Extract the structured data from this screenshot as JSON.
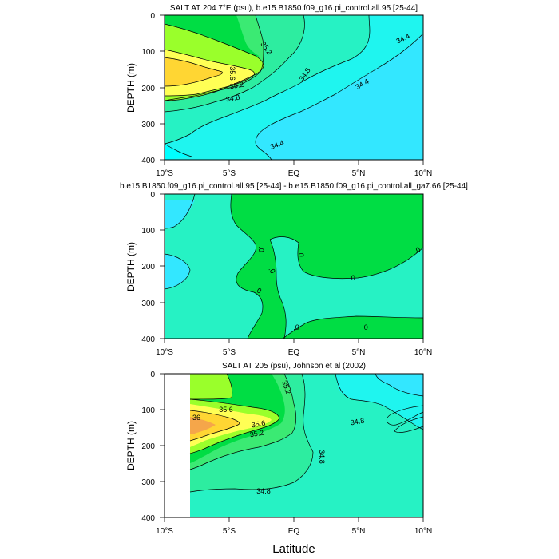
{
  "figure": {
    "x_axis_label": "Latitude"
  },
  "colors": {
    "c34_2": "#00ffff",
    "c34_4": "#33e7ff",
    "c34_6": "#1ff5ef",
    "c34_8": "#26f2c4",
    "c35_0": "#2deda0",
    "c35_2": "#3bea73",
    "c35_4": "#00dd44",
    "c35_6": "#9aff2b",
    "c35_8": "#ffff55",
    "c36_0": "#ffd633",
    "c36_2": "#f5a64a"
  },
  "chart_data": [
    {
      "type": "contour",
      "title": "SALT AT 204.7°E (psu), b.e15.B1850.f09_g16.pi_control.all.95 [25-44]",
      "ylabel": "DEPTH (m)",
      "xlabel": "",
      "xlim": [
        -10,
        10
      ],
      "ylim": [
        400,
        0
      ],
      "x_ticks": [
        "10°S",
        "5°S",
        "EQ",
        "5°N",
        "10°N"
      ],
      "y_ticks": [
        "0",
        "100",
        "200",
        "300",
        "400"
      ],
      "contour_labels": [
        "35.2",
        "34.8",
        "34.4",
        "35.6",
        "35.2",
        "34.8",
        "34.4",
        "34.4"
      ],
      "levels": [
        34.4,
        34.8,
        35.2,
        35.6
      ]
    },
    {
      "type": "contour",
      "title": "b.e15.B1850.f09_g16.pi_control.all.95 [25-44] - b.e15.B1850.f09_g16.pi_control.all_ga7.66 [25-44]",
      "ylabel": "DEPTH (m)",
      "xlabel": "",
      "xlim": [
        -10,
        10
      ],
      "ylim": [
        400,
        0
      ],
      "x_ticks": [
        "10°S",
        "5°S",
        "EQ",
        "5°N",
        "10°N"
      ],
      "y_ticks": [
        "0",
        "100",
        "200",
        "300",
        "400"
      ],
      "contour_labels": [
        ".0",
        ".0",
        ".0",
        ".0",
        ".0",
        ".0",
        ".0",
        ".0"
      ],
      "levels": [
        0
      ]
    },
    {
      "type": "contour",
      "title": "SALT AT 205 (psu), Johnson et al (2002)",
      "ylabel": "DEPTH (m)",
      "xlabel": "Latitude",
      "xlim": [
        -10,
        10
      ],
      "ylim": [
        400,
        0
      ],
      "x_ticks": [
        "10°S",
        "5°S",
        "EQ",
        "5°N",
        "10°N"
      ],
      "y_ticks": [
        "0",
        "100",
        "200",
        "300",
        "400"
      ],
      "contour_labels": [
        "35.2",
        "35.6",
        "36",
        "35.6",
        "35.2",
        "34.8",
        "34.8",
        "34.8"
      ],
      "levels": [
        34.8,
        35.2,
        35.6,
        36.0
      ]
    }
  ]
}
